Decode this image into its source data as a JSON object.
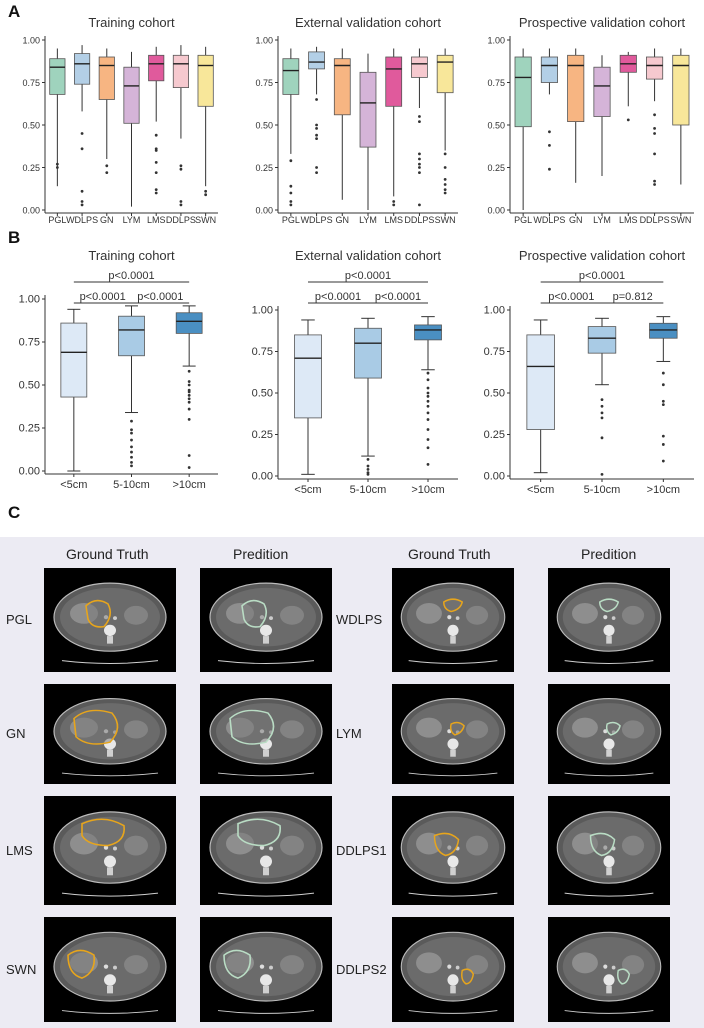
{
  "panels": {
    "a": "A",
    "b": "B",
    "c": "C"
  },
  "colors": {
    "PGL": "#9fd3bd",
    "WDLPS": "#b3cfe6",
    "GN": "#f7b582",
    "LYM": "#d5b4d8",
    "LMS": "#e05a9c",
    "DDLPS": "#f6c9cf",
    "SWN": "#f8e79a",
    "size_small": "#dde9f6",
    "size_mid": "#a9cbe5",
    "size_large": "#4a8fc2",
    "tumor_gt": "#e7a51c",
    "tumor_pred": "#b9dcc4"
  },
  "chart_data": [
    {
      "type": "boxplot",
      "title": "Training cohort",
      "categories": [
        "PGL",
        "WDLPS",
        "GN",
        "LYM",
        "LMS",
        "DDLPS",
        "SWN"
      ],
      "yticks": [
        "0.00",
        "0.25",
        "0.50",
        "0.75",
        "1.00"
      ],
      "ylim": [
        0,
        1
      ],
      "boxes": [
        {
          "min": 0.14,
          "q1": 0.68,
          "median": 0.84,
          "q3": 0.89,
          "max": 0.95,
          "outliers": [
            0.27,
            0.25
          ]
        },
        {
          "min": 0.58,
          "q1": 0.74,
          "median": 0.86,
          "q3": 0.92,
          "max": 0.97,
          "outliers": [
            0.45,
            0.36,
            0.11,
            0.05,
            0.03
          ]
        },
        {
          "min": 0.3,
          "q1": 0.65,
          "median": 0.85,
          "q3": 0.9,
          "max": 0.95,
          "outliers": [
            0.26,
            0.22
          ]
        },
        {
          "min": 0.02,
          "q1": 0.51,
          "median": 0.73,
          "q3": 0.84,
          "max": 0.93,
          "outliers": []
        },
        {
          "min": 0.52,
          "q1": 0.76,
          "median": 0.86,
          "q3": 0.91,
          "max": 0.96,
          "outliers": [
            0.44,
            0.36,
            0.35,
            0.28,
            0.22,
            0.12,
            0.1
          ]
        },
        {
          "min": 0.42,
          "q1": 0.72,
          "median": 0.86,
          "q3": 0.91,
          "max": 0.97,
          "outliers": [
            0.26,
            0.24,
            0.05,
            0.03
          ]
        },
        {
          "min": 0.14,
          "q1": 0.61,
          "median": 0.85,
          "q3": 0.91,
          "max": 0.96,
          "outliers": [
            0.11,
            0.09
          ]
        }
      ]
    },
    {
      "type": "boxplot",
      "title": "External validation cohort",
      "categories": [
        "PGL",
        "WDLPS",
        "GN",
        "LYM",
        "LMS",
        "DDLPS",
        "SWN"
      ],
      "yticks": [
        "0.00",
        "0.25",
        "0.50",
        "0.75",
        "1.00"
      ],
      "ylim": [
        0,
        1
      ],
      "boxes": [
        {
          "min": 0.33,
          "q1": 0.68,
          "median": 0.82,
          "q3": 0.89,
          "max": 0.95,
          "outliers": [
            0.29,
            0.14,
            0.1,
            0.05,
            0.03
          ]
        },
        {
          "min": 0.68,
          "q1": 0.83,
          "median": 0.87,
          "q3": 0.93,
          "max": 0.96,
          "outliers": [
            0.65,
            0.5,
            0.48,
            0.44,
            0.42,
            0.25,
            0.22
          ]
        },
        {
          "min": 0.06,
          "q1": 0.56,
          "median": 0.85,
          "q3": 0.89,
          "max": 0.95,
          "outliers": []
        },
        {
          "min": 0.0,
          "q1": 0.37,
          "median": 0.63,
          "q3": 0.81,
          "max": 0.92,
          "outliers": []
        },
        {
          "min": 0.08,
          "q1": 0.61,
          "median": 0.83,
          "q3": 0.9,
          "max": 0.95,
          "outliers": [
            0.05,
            0.03
          ]
        },
        {
          "min": 0.6,
          "q1": 0.78,
          "median": 0.86,
          "q3": 0.9,
          "max": 0.95,
          "outliers": [
            0.55,
            0.52,
            0.33,
            0.3,
            0.27,
            0.25,
            0.22,
            0.03
          ]
        },
        {
          "min": 0.35,
          "q1": 0.69,
          "median": 0.87,
          "q3": 0.91,
          "max": 0.95,
          "outliers": [
            0.33,
            0.25,
            0.18,
            0.15,
            0.12,
            0.1
          ]
        }
      ]
    },
    {
      "type": "boxplot",
      "title": "Prospective validation cohort",
      "categories": [
        "PGL",
        "WDLPS",
        "GN",
        "LYM",
        "LMS",
        "DDLPS",
        "SWN"
      ],
      "yticks": [
        "0.00",
        "0.25",
        "0.50",
        "0.75",
        "1.00"
      ],
      "ylim": [
        0,
        1
      ],
      "boxes": [
        {
          "min": 0.0,
          "q1": 0.49,
          "median": 0.78,
          "q3": 0.9,
          "max": 0.95,
          "outliers": []
        },
        {
          "min": 0.68,
          "q1": 0.75,
          "median": 0.85,
          "q3": 0.9,
          "max": 0.95,
          "outliers": [
            0.46,
            0.38,
            0.24
          ]
        },
        {
          "min": 0.16,
          "q1": 0.52,
          "median": 0.85,
          "q3": 0.91,
          "max": 0.95,
          "outliers": []
        },
        {
          "min": 0.2,
          "q1": 0.55,
          "median": 0.73,
          "q3": 0.84,
          "max": 0.91,
          "outliers": []
        },
        {
          "min": 0.61,
          "q1": 0.81,
          "median": 0.86,
          "q3": 0.91,
          "max": 0.93,
          "outliers": [
            0.53
          ]
        },
        {
          "min": 0.64,
          "q1": 0.77,
          "median": 0.85,
          "q3": 0.9,
          "max": 0.95,
          "outliers": [
            0.56,
            0.48,
            0.45,
            0.33,
            0.17,
            0.15
          ]
        },
        {
          "min": 0.15,
          "q1": 0.5,
          "median": 0.85,
          "q3": 0.91,
          "max": 0.95,
          "outliers": []
        }
      ]
    },
    {
      "type": "boxplot",
      "title": "Training cohort",
      "categories": [
        "<5cm",
        "5-10cm",
        ">10cm"
      ],
      "yticks": [
        "0.00",
        "0.25",
        "0.50",
        "0.75",
        "1.00"
      ],
      "ylim": [
        0,
        1
      ],
      "boxes": [
        {
          "min": 0.0,
          "q1": 0.43,
          "median": 0.69,
          "q3": 0.86,
          "max": 0.94,
          "outliers": []
        },
        {
          "min": 0.34,
          "q1": 0.67,
          "median": 0.82,
          "q3": 0.9,
          "max": 0.96,
          "outliers": [
            0.29,
            0.24,
            0.22,
            0.18,
            0.14,
            0.11,
            0.08,
            0.05,
            0.03
          ]
        },
        {
          "min": 0.61,
          "q1": 0.8,
          "median": 0.87,
          "q3": 0.92,
          "max": 0.96,
          "outliers": [
            0.58,
            0.52,
            0.5,
            0.47,
            0.46,
            0.44,
            0.42,
            0.4,
            0.36,
            0.3,
            0.09,
            0.02
          ]
        }
      ],
      "significance": [
        {
          "from": 0,
          "to": 2,
          "label": "p<0.0001"
        },
        {
          "from": 0,
          "to": 1,
          "label": "p<0.0001"
        },
        {
          "from": 1,
          "to": 2,
          "label": "p<0.0001"
        }
      ]
    },
    {
      "type": "boxplot",
      "title": "External validation cohort",
      "categories": [
        "<5cm",
        "5-10cm",
        ">10cm"
      ],
      "yticks": [
        "0.00",
        "0.25",
        "0.50",
        "0.75",
        "1.00"
      ],
      "ylim": [
        0,
        1
      ],
      "boxes": [
        {
          "min": 0.01,
          "q1": 0.35,
          "median": 0.71,
          "q3": 0.85,
          "max": 0.94,
          "outliers": []
        },
        {
          "min": 0.12,
          "q1": 0.59,
          "median": 0.8,
          "q3": 0.89,
          "max": 0.95,
          "outliers": [
            0.1,
            0.06,
            0.04,
            0.02,
            0.01
          ]
        },
        {
          "min": 0.64,
          "q1": 0.82,
          "median": 0.88,
          "q3": 0.91,
          "max": 0.96,
          "outliers": [
            0.62,
            0.58,
            0.53,
            0.5,
            0.48,
            0.45,
            0.42,
            0.38,
            0.34,
            0.28,
            0.22,
            0.17,
            0.07
          ]
        }
      ],
      "significance": [
        {
          "from": 0,
          "to": 2,
          "label": "p<0.0001"
        },
        {
          "from": 0,
          "to": 1,
          "label": "p<0.0001"
        },
        {
          "from": 1,
          "to": 2,
          "label": "p<0.0001"
        }
      ]
    },
    {
      "type": "boxplot",
      "title": "Prospective validation cohort",
      "categories": [
        "<5cm",
        "5-10cm",
        ">10cm"
      ],
      "yticks": [
        "0.00",
        "0.25",
        "0.50",
        "0.75",
        "1.00"
      ],
      "ylim": [
        0,
        1
      ],
      "boxes": [
        {
          "min": 0.02,
          "q1": 0.28,
          "median": 0.66,
          "q3": 0.85,
          "max": 0.94,
          "outliers": []
        },
        {
          "min": 0.55,
          "q1": 0.74,
          "median": 0.83,
          "q3": 0.9,
          "max": 0.95,
          "outliers": [
            0.46,
            0.42,
            0.38,
            0.35,
            0.23,
            0.01
          ]
        },
        {
          "min": 0.69,
          "q1": 0.83,
          "median": 0.88,
          "q3": 0.92,
          "max": 0.96,
          "outliers": [
            0.62,
            0.55,
            0.45,
            0.43,
            0.24,
            0.19,
            0.09
          ]
        }
      ],
      "significance": [
        {
          "from": 0,
          "to": 2,
          "label": "p<0.0001"
        },
        {
          "from": 0,
          "to": 1,
          "label": "p<0.0001"
        },
        {
          "from": 1,
          "to": 2,
          "label": "p=0.812"
        }
      ]
    }
  ],
  "section_c": {
    "col_titles": [
      "Ground Truth",
      "Predition",
      "Ground Truth",
      "Predition"
    ],
    "row_labels_left": [
      "PGL",
      "GN",
      "LMS",
      "SWN"
    ],
    "row_labels_right": [
      "WDLPS",
      "LYM",
      "DDLPS1",
      "DDLPS2"
    ]
  }
}
